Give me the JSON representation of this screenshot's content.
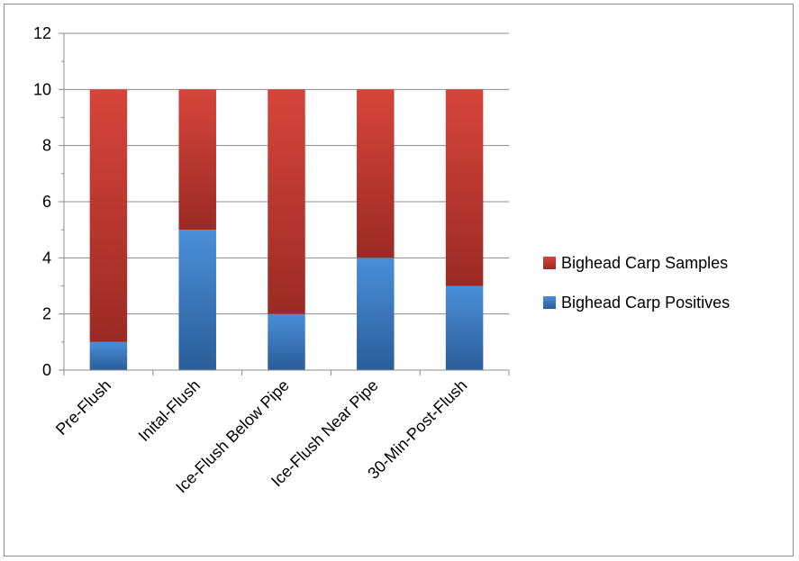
{
  "chart_data": {
    "type": "bar",
    "stacked": true,
    "categories": [
      "Pre-Flush",
      "Inital-Flush",
      "Ice-Flush Below Pipe",
      "Ice-Flush Near Pipe",
      "30-Min-Post-Flush"
    ],
    "series": [
      {
        "name": "Bighead Carp Positives",
        "values": [
          1,
          5,
          2,
          4,
          3
        ],
        "color": "#3d7cc8"
      },
      {
        "name": "Bighead Carp Samples",
        "values": [
          9,
          5,
          8,
          6,
          7
        ],
        "color": "#c0392f"
      }
    ],
    "ylim": [
      0,
      12
    ],
    "yticks": [
      0,
      2,
      4,
      6,
      8,
      10,
      12
    ],
    "grid": true,
    "legend_position": "right"
  }
}
